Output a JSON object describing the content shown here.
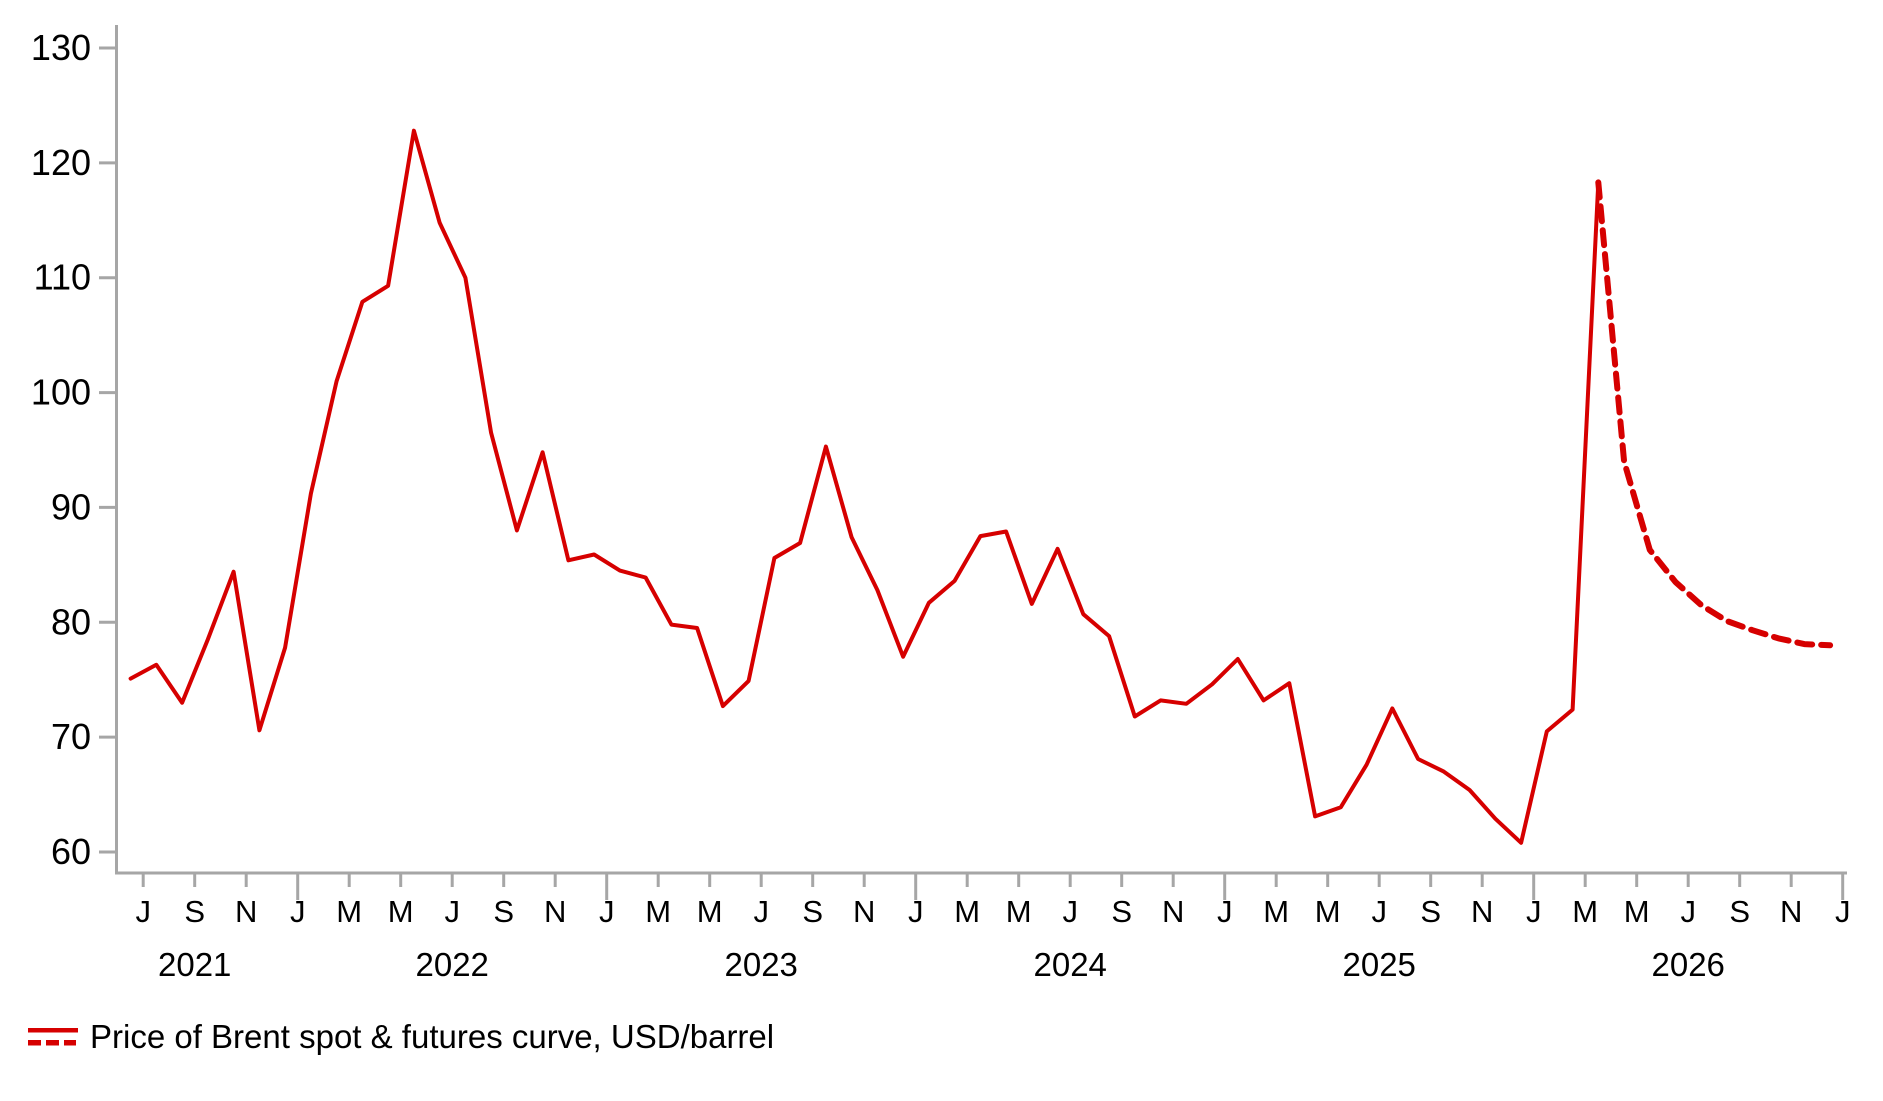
{
  "colors": {
    "series_red": "#d60000",
    "axis_gray": "#a6a6a6",
    "label_black": "#000000",
    "background": "#ffffff"
  },
  "legend": {
    "label": "Price of Brent spot & futures curve, USD/barrel",
    "position": "bottom-left"
  },
  "chart_data": {
    "type": "line",
    "title": "",
    "ylabel": "USD/barrel",
    "ylim": [
      60,
      130
    ],
    "y_ticks": [
      60,
      70,
      80,
      90,
      100,
      110,
      120,
      130
    ],
    "grid": false,
    "x_axis": {
      "first_tick_month": "Jul 2021",
      "last_tick_month": "Jan 2027",
      "tick_interval_months": 2,
      "month_tick_labels": [
        "J",
        "S",
        "N",
        "J",
        "M",
        "M",
        "J",
        "S",
        "N",
        "J",
        "M",
        "M",
        "J",
        "S",
        "N",
        "J",
        "M",
        "M",
        "J",
        "S",
        "N",
        "J",
        "M",
        "M",
        "J",
        "S",
        "N",
        "J",
        "M",
        "M",
        "J",
        "S",
        "N",
        "J"
      ],
      "year_labels": [
        "2021",
        "2022",
        "2023",
        "2024",
        "2025",
        "2026"
      ]
    },
    "series": [
      {
        "name": "Brent spot price, monthly (end of month), USD/barrel",
        "style": "solid",
        "color": "#d60000",
        "start_month": "Jun 2021",
        "values": [
          75.1,
          76.3,
          73.0,
          78.5,
          84.4,
          70.6,
          77.8,
          91.2,
          101.0,
          107.9,
          109.3,
          122.8,
          114.8,
          110.0,
          96.5,
          88.0,
          94.8,
          85.4,
          85.9,
          84.5,
          83.9,
          79.8,
          79.5,
          72.7,
          74.9,
          85.6,
          86.9,
          95.3,
          87.4,
          82.8,
          77.0,
          81.7,
          83.6,
          87.5,
          87.9,
          81.6,
          86.4,
          80.7,
          78.8,
          71.8,
          73.2,
          72.9,
          74.6,
          76.8,
          73.2,
          74.7,
          63.1,
          63.9,
          67.6,
          72.5,
          68.1,
          67.0,
          65.4,
          62.9,
          60.8,
          70.5,
          72.4,
          118.3
        ]
      },
      {
        "name": "Brent futures curve, USD/barrel",
        "style": "dashed",
        "color": "#d60000",
        "start_month": "Mar 2026",
        "values": [
          118.3,
          94.0,
          86.3,
          83.5,
          81.5,
          80.1,
          79.3,
          78.6,
          78.1,
          78.0
        ]
      }
    ]
  }
}
